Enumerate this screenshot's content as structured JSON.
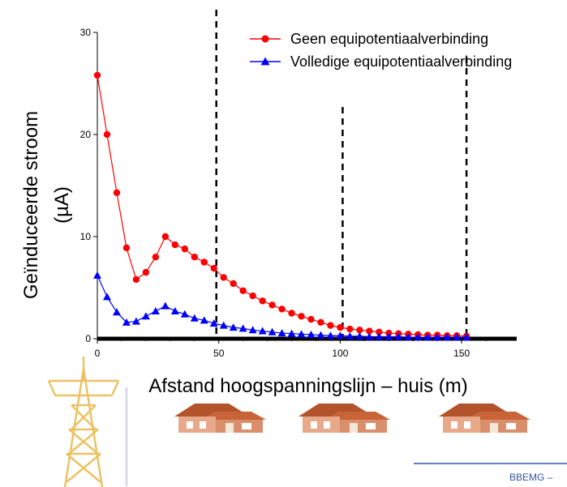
{
  "chart_data": {
    "type": "line",
    "xlabel": "Afstand hoogspanningslijn – huis (m)",
    "ylabel_lines": [
      "Geïnduceerde stroom",
      "(µA)"
    ],
    "xlim": [
      0,
      170
    ],
    "ylim": [
      0,
      30
    ],
    "xticks": [
      0,
      50,
      100,
      150
    ],
    "yticks": [
      0,
      10,
      20,
      30
    ],
    "reference_lines_x": [
      49,
      101,
      152
    ],
    "legend_position": "top-right",
    "series": [
      {
        "name": "Geen equipotentiaalverbinding",
        "color": "#ff0000",
        "marker": "circle",
        "x": [
          0,
          4,
          8,
          12,
          16,
          20,
          24,
          28,
          32,
          36,
          40,
          44,
          48,
          52,
          56,
          60,
          64,
          68,
          72,
          76,
          80,
          84,
          88,
          92,
          96,
          100,
          104,
          108,
          112,
          116,
          120,
          124,
          128,
          132,
          136,
          140,
          144,
          148,
          152
        ],
        "values": [
          25.8,
          20.0,
          14.3,
          8.9,
          5.8,
          6.5,
          8.0,
          10.0,
          9.2,
          8.8,
          8.0,
          7.5,
          6.9,
          6.0,
          5.4,
          4.7,
          4.2,
          3.7,
          3.3,
          2.9,
          2.5,
          2.2,
          1.9,
          1.6,
          1.3,
          1.1,
          0.95,
          0.85,
          0.75,
          0.65,
          0.55,
          0.5,
          0.45,
          0.4,
          0.35,
          0.35,
          0.3,
          0.3,
          0.25
        ]
      },
      {
        "name": "Volledige equipotentiaalverbinding",
        "color": "#0000ff",
        "marker": "triangle",
        "x": [
          0,
          4,
          8,
          12,
          16,
          20,
          24,
          28,
          32,
          36,
          40,
          44,
          48,
          52,
          56,
          60,
          64,
          68,
          72,
          76,
          80,
          84,
          88,
          92,
          96,
          100,
          104,
          108,
          112,
          116,
          120,
          124,
          128,
          132,
          136,
          140,
          144,
          148,
          152
        ],
        "values": [
          6.2,
          4.1,
          2.6,
          1.6,
          1.7,
          2.2,
          2.7,
          3.2,
          2.7,
          2.4,
          2.0,
          1.8,
          1.5,
          1.3,
          1.1,
          1.0,
          0.85,
          0.75,
          0.65,
          0.55,
          0.5,
          0.45,
          0.4,
          0.35,
          0.3,
          0.3,
          0.25,
          0.25,
          0.2,
          0.2,
          0.2,
          0.2,
          0.15,
          0.15,
          0.15,
          0.15,
          0.15,
          0.15,
          0.15
        ]
      }
    ]
  },
  "decor": {
    "house_icon": "house-icon",
    "tower_icon": "pylon-icon"
  },
  "footer": {
    "text": "BBEMG –"
  }
}
